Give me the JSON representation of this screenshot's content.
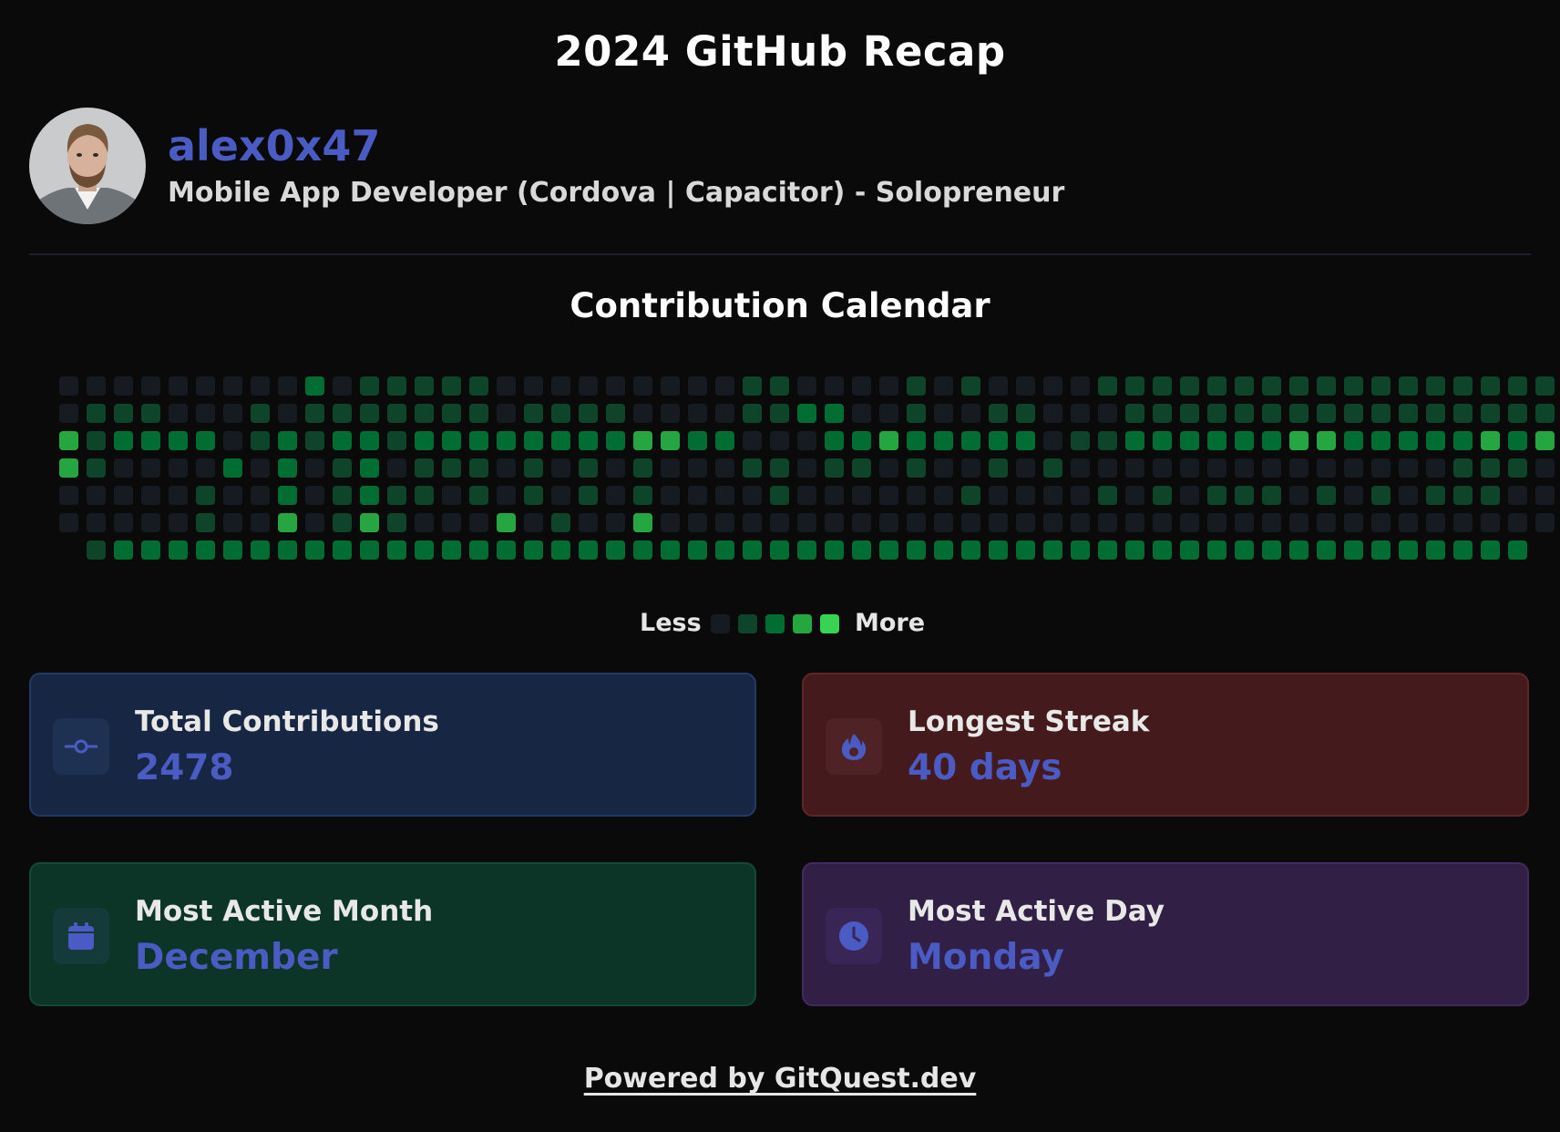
{
  "header": {
    "title": "2024 GitHub Recap"
  },
  "profile": {
    "username": "alex0x47",
    "bio": "Mobile App Developer (Cordova | Capacitor) - Solopreneur",
    "avatar_icon": "person-avatar"
  },
  "calendar": {
    "title": "Contribution Calendar",
    "levels": [
      "#161b22",
      "#0e4429",
      "#006d32",
      "#26a641",
      "#39d353"
    ],
    "cells": [
      "0000000002011111000000000110000101000011111111111111111",
      "0111000101111111011110000112200100110001111111111111111",
      "3122220121221222222223322000223222220112222223322222323",
      "3100002020120111010101000110110100101000000000000001110",
      "0000010020121101010101000010000001000010101110101011100",
      "0000010030131000301003000000000000000000000000000000000",
      "-12222222222222222222222222222222222222222222222222222-"
    ],
    "legend_less": "Less",
    "legend_more": "More"
  },
  "stats": [
    {
      "label": "Total Contributions",
      "value": "2478",
      "icon": "commit-icon",
      "bg": "#172642",
      "border": "#233a66",
      "icon_bg": "#1f3152"
    },
    {
      "label": "Longest Streak",
      "value": "40 days",
      "icon": "flame-icon",
      "bg": "#451a1d",
      "border": "#5e2628",
      "icon_bg": "#4f2226"
    },
    {
      "label": "Most Active Month",
      "value": "December",
      "icon": "calendar-icon",
      "bg": "#0c3527",
      "border": "#144a35",
      "icon_bg": "#153a3a"
    },
    {
      "label": "Most Active Day",
      "value": "Monday",
      "icon": "clock-icon",
      "bg": "#321f46",
      "border": "#43295c",
      "icon_bg": "#3a2656"
    }
  ],
  "footer": {
    "text": "Powered by GitQuest.dev"
  },
  "colors": {
    "accent": "#4a5bc4",
    "background": "#0a0a0a"
  }
}
